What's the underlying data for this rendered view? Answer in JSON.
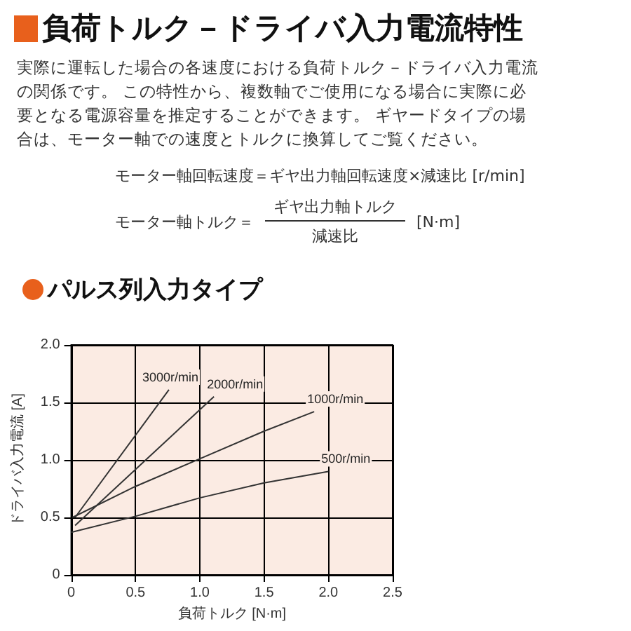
{
  "chart_data": {
    "type": "line",
    "title": "負荷トルク－ドライバ入力電流特性",
    "subtitle": "実際に運転した場合の各速度における負荷トルク－ドライバ入力電流の関係です。 この特性から、複数軸でご使用になる場合に実際に必要となる電源容量を推定することができます。 ギヤードタイプの場合は、モーター軸での速度とトルクに換算してご覧ください。",
    "annotations": [
      "モーター軸回転速度＝ギヤ出力軸回転速度×減速比 [r/min]",
      "モーター軸トルク＝",
      "ギヤ出力軸トルク",
      "減速比",
      "[N·m]",
      "パルス列入力タイプ"
    ],
    "xlabel": "負荷トルク [N·m]",
    "ylabel": "ドライバ入力電流 [A]",
    "xlim": [
      0,
      2.5
    ],
    "xticks": [
      0,
      0.5,
      {
        "value": 1,
        "label": "1.0"
      },
      1.5,
      {
        "value": 2,
        "label": "2.0"
      },
      2.5
    ],
    "ylim": [
      0,
      2
    ],
    "yticks": [
      0,
      0.5,
      {
        "value": 1,
        "label": "1.0"
      },
      1.5,
      {
        "value": 2,
        "label": "2.0"
      }
    ],
    "grid": true,
    "legend": false,
    "marker": "none",
    "line_style": "solid",
    "series": [
      {
        "name": "3000r/min",
        "color": "#333333",
        "x": [
          0.03,
          0.76
        ],
        "values": [
          0.5,
          1.61
        ]
      },
      {
        "name": "2000r/min",
        "color": "#333333",
        "x": [
          0.03,
          1.11
        ],
        "values": [
          0.43,
          1.55
        ]
      },
      {
        "name": "1000r/min",
        "color": "#333333",
        "x": [
          0.01,
          0.5,
          1.0,
          1.5,
          1.89
        ],
        "values": [
          0.5,
          0.77,
          1.01,
          1.25,
          1.42
        ]
      },
      {
        "name": "500r/min",
        "color": "#333333",
        "x": [
          0,
          0.5,
          1.0,
          1.5,
          2.0
        ],
        "values": [
          0.37,
          0.51,
          0.67,
          0.8,
          0.9
        ]
      }
    ]
  }
}
